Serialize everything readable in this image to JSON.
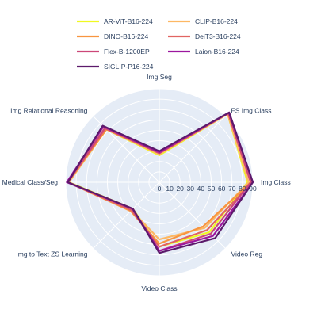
{
  "chart_data": {
    "type": "radar",
    "axes": [
      "Img Seg",
      "FS Img Class",
      "Img Class",
      "Video Reg",
      "Video Class",
      "Img to Text ZS Learning",
      "Medical Class/Seg",
      "Img Relational Reasoning"
    ],
    "radial_ticks": [
      0,
      10,
      20,
      30,
      40,
      50,
      60,
      70,
      80,
      90
    ],
    "rmax": 90,
    "series": [
      {
        "name": "AR-ViT-B16-224",
        "color": "#f0f921",
        "values": [
          26,
          93,
          85,
          68,
          62,
          36,
          87,
          72
        ]
      },
      {
        "name": "CLIP-B16-224",
        "color": "#fdb863",
        "values": [
          27,
          93,
          86,
          62,
          55,
          38,
          87,
          72
        ]
      },
      {
        "name": "DINO-B16-224",
        "color": "#f89540",
        "values": [
          28,
          94,
          88,
          60,
          59,
          39,
          88,
          72
        ]
      },
      {
        "name": "DeiT3-B16-224",
        "color": "#e16462",
        "values": [
          29,
          94,
          89,
          65,
          62,
          38,
          88,
          73
        ]
      },
      {
        "name": "Flex-B-1200EP",
        "color": "#cc4778",
        "values": [
          28,
          94,
          88,
          70,
          66,
          37,
          88,
          74
        ]
      },
      {
        "name": "Laion-B16-224",
        "color": "#9c179e",
        "values": [
          29,
          95,
          90,
          73,
          66,
          36,
          89,
          76
        ]
      },
      {
        "name": "SIGLIP-P16-224",
        "color": "#5c1a6b",
        "values": [
          30,
          95,
          90,
          76,
          68,
          36,
          88,
          77
        ]
      }
    ],
    "legend_position": "top",
    "grid": true
  }
}
